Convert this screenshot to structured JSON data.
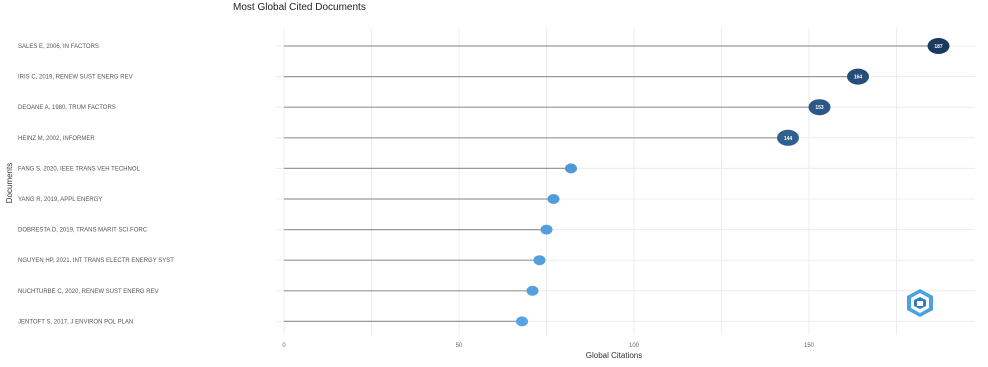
{
  "chart_data": {
    "type": "lollipop",
    "title": "Most Global Cited Documents",
    "xlabel": "Global Citations",
    "ylabel": "Documents",
    "xlim": [
      0,
      200
    ],
    "xticks": [
      0,
      50,
      100,
      150
    ],
    "grid": true,
    "categories": [
      "SALES E, 2006, IN FACTORS",
      "IRIS C, 2019, RENEW SUST ENERG REV",
      "DEOANE A, 1980, TRUM FACTORS",
      "HEINZ M, 2002, INFORMER",
      "FANG S, 2020, IEEE TRANS VEH TECHNOL",
      "YANG R, 2019, APPL ENERGY",
      "DOBRESTA D, 2019, TRANS MARIT SCI FORC",
      "NGUYEN HP, 2021, INT TRANS ELECTR ENERGY SYST",
      "NUCHTURBE C, 2020, RENEW SUST ENERG REV",
      "JENTOFT S, 2017, J ENVIRON POL PLAN"
    ],
    "values": [
      187,
      164,
      153,
      144,
      82,
      77,
      75,
      73,
      71,
      68
    ],
    "data_labels": [
      "187",
      "164",
      "153",
      "144",
      "",
      "",
      "",
      "",
      "",
      ""
    ],
    "colors": {
      "high": "#1b3a5f",
      "low": "#56a4e3",
      "stem": "#9a9a9a",
      "grid": "#ececec"
    },
    "logo_icon": "bibliometrix-logo-icon"
  }
}
